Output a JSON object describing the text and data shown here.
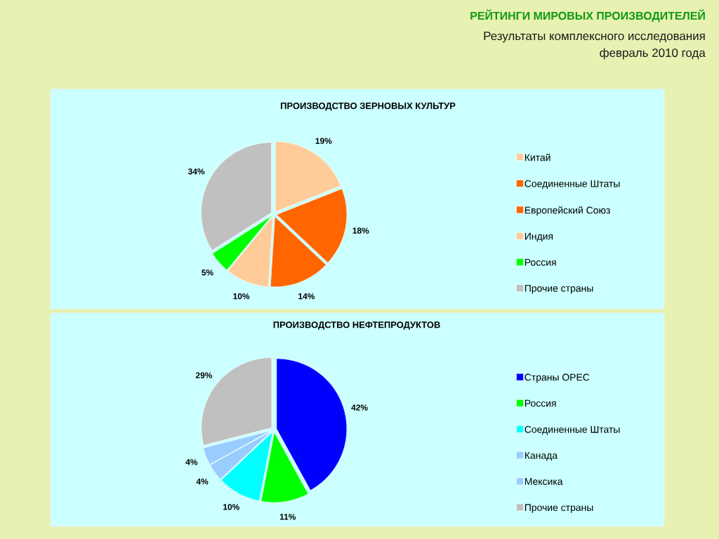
{
  "chart_data": [
    {
      "type": "other",
      "title": "РЕЙТИНГИ МИРОВЫХ ПРОИЗВОДИТЕЛЕЙ",
      "subtitle": "Результаты комплексного исследования",
      "annotations": [
        "февраль 2010 года"
      ]
    },
    {
      "type": "pie",
      "title": "ПРОИЗВОДСТВО ЗЕРНОВЫХ КУЛЬТУР",
      "categories": [
        "Китай",
        "Соединенные Штаты",
        "Европейский Союз",
        "Индия",
        "Россия",
        "Прочие страны"
      ],
      "values": [
        19,
        18,
        14,
        10,
        5,
        34
      ],
      "colors": [
        "#ffcc99",
        "#ff6600",
        "#ff6600",
        "#ffcc99",
        "#00ff00",
        "#c0c0c0"
      ],
      "value_labels": [
        "19%",
        "18%",
        "14%",
        "10%",
        "5%",
        "34%"
      ],
      "legend": "right"
    },
    {
      "type": "pie",
      "title": "ПРОИЗВОДСТВО НЕФТЕПРОДУКТОВ",
      "categories": [
        "Страны OPEC",
        "Россия",
        "Соединенные Штаты",
        "Канада",
        "Мексика",
        "Прочие страны"
      ],
      "values": [
        42,
        11,
        10,
        4,
        4,
        29
      ],
      "colors": [
        "#0000ff",
        "#00ff00",
        "#00ffff",
        "#99ccff",
        "#99ccff",
        "#c0c0c0"
      ],
      "value_labels": [
        "42%",
        "11%",
        "10%",
        "4%",
        "4%",
        "29%"
      ],
      "legend": "right"
    }
  ]
}
